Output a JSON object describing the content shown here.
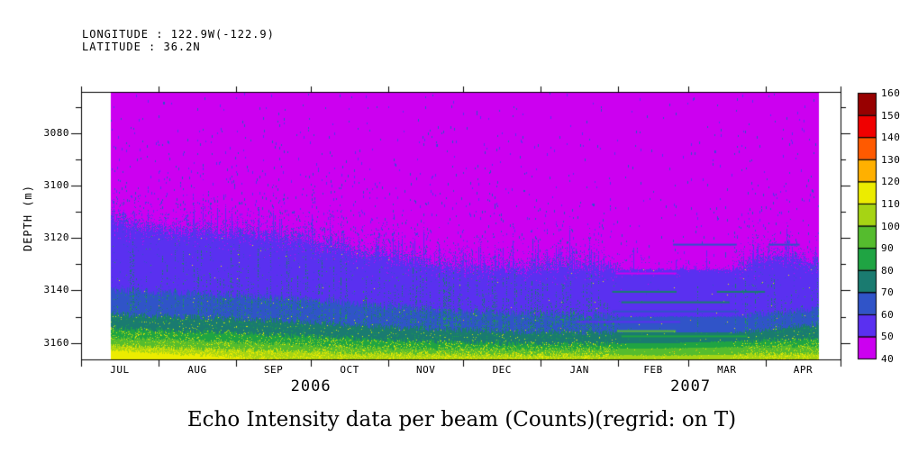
{
  "header": {
    "longitude_label": "LONGITUDE : 122.9W(-122.9)",
    "latitude_label": "LATITUDE : 36.2N"
  },
  "chart_data": {
    "type": "heatmap",
    "title": "Echo Intensity data per beam (Counts)(regrid: on T)",
    "value_units": "Counts",
    "ylabel": "DEPTH (m)",
    "y_direction": "down",
    "y_range": [
      3064.2,
      3166.3
    ],
    "y_ticks": [
      3080,
      3100,
      3120,
      3140,
      3160
    ],
    "y_minor_ticks": [
      3070,
      3090,
      3110,
      3130,
      3150
    ],
    "x_range": [
      "2006-07-01",
      "2007-05-01"
    ],
    "data_time_extent": [
      "2006-07-12",
      "2007-04-22"
    ],
    "x_tick_months": [
      {
        "label": "JUL",
        "days": 31
      },
      {
        "label": "AUG",
        "days": 31
      },
      {
        "label": "SEP",
        "days": 30
      },
      {
        "label": "OCT",
        "days": 31
      },
      {
        "label": "NOV",
        "days": 30
      },
      {
        "label": "DEC",
        "days": 31
      },
      {
        "label": "JAN",
        "days": 31
      },
      {
        "label": "FEB",
        "days": 28
      },
      {
        "label": "MAR",
        "days": 31
      },
      {
        "label": "APR",
        "days": 30
      }
    ],
    "x_years": [
      {
        "label": "2006",
        "month_span": [
          0,
          6
        ]
      },
      {
        "label": "2007",
        "month_span": [
          6,
          10
        ]
      }
    ],
    "colorbar": {
      "min": 40,
      "max": 160,
      "step": 10,
      "tick_labels": [
        40,
        50,
        60,
        70,
        80,
        90,
        100,
        110,
        120,
        130,
        140,
        150,
        160
      ],
      "colors": [
        "#CC00F0",
        "#5A30F0",
        "#3054C8",
        "#1A7B70",
        "#1FA443",
        "#55BC2E",
        "#A6D414",
        "#ECEC00",
        "#FFB000",
        "#FF5A00",
        "#F00000",
        "#980000"
      ]
    },
    "layers": [
      {
        "level": 1,
        "band": "50-60",
        "points": [
          [
            0,
            3114
          ],
          [
            0.08,
            3117
          ],
          [
            0.2,
            3118
          ],
          [
            0.3,
            3122
          ],
          [
            0.38,
            3127
          ],
          [
            0.5,
            3131
          ],
          [
            0.58,
            3132
          ],
          [
            0.65,
            3130
          ],
          [
            0.72,
            3132
          ],
          [
            0.88,
            3132
          ],
          [
            0.93,
            3127
          ],
          [
            1,
            3129
          ]
        ]
      },
      {
        "level": 2,
        "band": "60-70",
        "points": [
          [
            0,
            3140
          ],
          [
            0.2,
            3142
          ],
          [
            0.35,
            3145
          ],
          [
            0.5,
            3148
          ],
          [
            0.65,
            3149
          ],
          [
            0.72,
            3150
          ],
          [
            0.88,
            3150
          ],
          [
            1,
            3147
          ]
        ]
      },
      {
        "level": 3,
        "band": "70-80",
        "points": [
          [
            0,
            3149
          ],
          [
            0.2,
            3151
          ],
          [
            0.4,
            3154
          ],
          [
            0.6,
            3156
          ],
          [
            0.72,
            3156
          ],
          [
            0.88,
            3156
          ],
          [
            1,
            3153
          ]
        ]
      },
      {
        "level": 4,
        "band": "80-90",
        "points": [
          [
            0,
            3154.5
          ],
          [
            0.2,
            3156.5
          ],
          [
            0.4,
            3159
          ],
          [
            0.6,
            3160.5
          ],
          [
            0.8,
            3160
          ],
          [
            1,
            3158.5
          ]
        ]
      },
      {
        "level": 5,
        "band": "90-100",
        "points": [
          [
            0,
            3158
          ],
          [
            0.2,
            3160
          ],
          [
            0.4,
            3162
          ],
          [
            0.6,
            3162.5
          ],
          [
            0.8,
            3162
          ],
          [
            1,
            3161
          ]
        ]
      },
      {
        "level": 6,
        "band": "100-110",
        "points": [
          [
            0,
            3161
          ],
          [
            0.15,
            3162.5
          ],
          [
            0.35,
            3164
          ],
          [
            0.6,
            3164.5
          ],
          [
            0.8,
            3164.8
          ],
          [
            1,
            3164
          ]
        ]
      },
      {
        "level": 7,
        "band": "110-120",
        "points": [
          [
            0,
            3163
          ],
          [
            0.1,
            3164.3
          ],
          [
            0.2,
            3165.8
          ],
          [
            0.3,
            3167.2
          ],
          [
            1,
            3167.5
          ]
        ]
      }
    ],
    "dashes": [
      {
        "depth": 3122.5,
        "t0": 0.795,
        "t1": 0.885,
        "level": 2,
        "px": 2
      },
      {
        "depth": 3122.5,
        "t0": 0.93,
        "t1": 0.974,
        "level": 2,
        "px": 2
      },
      {
        "depth": 3133.5,
        "t0": 0.714,
        "t1": 0.8,
        "level": 0,
        "px": 2
      },
      {
        "depth": 3140.5,
        "t0": 0.709,
        "t1": 0.8,
        "level": 3,
        "px": 2
      },
      {
        "depth": 3140.5,
        "t0": 0.857,
        "t1": 0.925,
        "level": 3,
        "px": 2
      },
      {
        "depth": 3144.5,
        "t0": 0.722,
        "t1": 0.875,
        "level": 3,
        "px": 2
      },
      {
        "depth": 3148.0,
        "t0": 0.709,
        "t1": 0.888,
        "level": 2,
        "px": 2
      },
      {
        "depth": 3152.0,
        "t0": 0.658,
        "t1": 0.805,
        "level": 1,
        "px": 2
      },
      {
        "depth": 3155.5,
        "t0": 0.716,
        "t1": 0.799,
        "level": 5,
        "px": 2
      },
      {
        "depth": 3157.5,
        "t0": 0.722,
        "t1": 0.9,
        "level": 4,
        "px": 2
      }
    ],
    "noise_zones": [
      [
        0,
        1
      ],
      [
        0.7,
        1
      ],
      [
        0.725,
        0.12
      ],
      [
        0.872,
        0.12
      ],
      [
        0.9,
        0.85
      ],
      [
        1,
        0.85
      ]
    ],
    "dense_streak_t": [
      0.35,
      0.68
    ]
  }
}
